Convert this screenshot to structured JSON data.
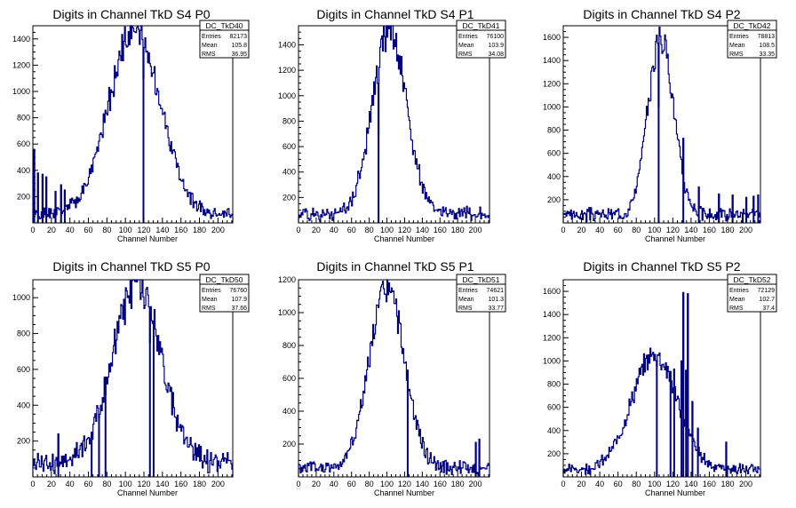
{
  "colors": {
    "line": "#000080",
    "axis": "#000000",
    "background": "#ffffff"
  },
  "chart_data": [
    {
      "type": "histogram",
      "title": "Digits in Channel TkD S4 P0",
      "xlabel": "Channel Number",
      "xlim": [
        0,
        216
      ],
      "ylim": [
        0,
        1500
      ],
      "xticks": [
        0,
        20,
        40,
        60,
        80,
        100,
        120,
        140,
        160,
        180,
        200
      ],
      "yticks": [
        200,
        400,
        600,
        800,
        1000,
        1200,
        1400
      ],
      "stats": {
        "name": "DC_TkD40",
        "entries": "82173",
        "mean": "105.8",
        "rms": "36.95"
      },
      "curve": {
        "mean": 110,
        "sigma": 28,
        "peak": 1400,
        "base": 70,
        "seed": 1
      },
      "extras": [
        [
          0,
          410
        ],
        [
          1,
          560
        ],
        [
          5,
          380
        ],
        [
          10,
          370
        ],
        [
          14,
          350
        ],
        [
          24,
          240
        ],
        [
          30,
          290
        ],
        [
          34,
          250
        ],
        [
          119,
          1100
        ]
      ]
    },
    {
      "type": "histogram",
      "title": "Digits in Channel TkD S4 P1",
      "xlabel": "Channel Number",
      "xlim": [
        0,
        216
      ],
      "ylim": [
        0,
        1550
      ],
      "xticks": [
        0,
        20,
        40,
        60,
        80,
        100,
        120,
        140,
        160,
        180,
        200
      ],
      "yticks": [
        200,
        400,
        600,
        800,
        1000,
        1200,
        1400
      ],
      "stats": {
        "name": "DC_TkD41",
        "entries": "76100",
        "mean": "103.9",
        "rms": "34.08"
      },
      "curve": {
        "mean": 103,
        "sigma": 19,
        "peak": 1450,
        "base": 80,
        "seed": 2
      },
      "extras": [
        [
          90,
          700
        ]
      ]
    },
    {
      "type": "histogram",
      "title": "Digits in Channel TkD S4 P2",
      "xlabel": "Channel Number",
      "xlim": [
        0,
        216
      ],
      "ylim": [
        0,
        1700
      ],
      "xticks": [
        0,
        20,
        40,
        60,
        80,
        100,
        120,
        140,
        160,
        180,
        200
      ],
      "yticks": [
        200,
        400,
        600,
        800,
        1000,
        1200,
        1400,
        1600
      ],
      "stats": {
        "name": "DC_TkD42",
        "entries": "78813",
        "mean": "108.5",
        "rms": "33.35"
      },
      "curve": {
        "mean": 107,
        "sigma": 14,
        "peak": 1540,
        "base": 80,
        "seed": 3
      },
      "extras": [
        [
          104,
          1000
        ],
        [
          131,
          730
        ],
        [
          148,
          310
        ],
        [
          170,
          250
        ],
        [
          185,
          240
        ],
        [
          200,
          220
        ],
        [
          208,
          230
        ],
        [
          213,
          240
        ]
      ]
    },
    {
      "type": "histogram",
      "title": "Digits in Channel TkD S5 P0",
      "xlabel": "Channel Number",
      "xlim": [
        0,
        216
      ],
      "ylim": [
        0,
        1100
      ],
      "xticks": [
        0,
        20,
        40,
        60,
        80,
        100,
        120,
        140,
        160,
        180,
        200
      ],
      "yticks": [
        200,
        400,
        600,
        800,
        1000
      ],
      "stats": {
        "name": "DC_TkD50",
        "entries": "76760",
        "mean": "107.9",
        "rms": "37.66"
      },
      "curve": {
        "mean": 112,
        "sigma": 26,
        "peak": 990,
        "base": 90,
        "seed": 4
      },
      "extras": [
        [
          27,
          240
        ],
        [
          63,
          250
        ],
        [
          71,
          330
        ],
        [
          78,
          460
        ],
        [
          126,
          750
        ],
        [
          130,
          870
        ]
      ]
    },
    {
      "type": "histogram",
      "title": "Digits in Channel TkD S5 P1",
      "xlabel": "Channel Number",
      "xlim": [
        0,
        216
      ],
      "ylim": [
        0,
        1200
      ],
      "xticks": [
        0,
        20,
        40,
        60,
        80,
        100,
        120,
        140,
        160,
        180,
        200
      ],
      "yticks": [
        200,
        400,
        600,
        800,
        1000,
        1200
      ],
      "stats": {
        "name": "DC_TkD51",
        "entries": "74621",
        "mean": "101.3",
        "rms": "33.77"
      },
      "curve": {
        "mean": 100,
        "sigma": 20,
        "peak": 1090,
        "base": 60,
        "seed": 5
      },
      "extras": [
        [
          123,
          650
        ],
        [
          200,
          210
        ],
        [
          204,
          230
        ]
      ]
    },
    {
      "type": "histogram",
      "title": "Digits in Channel TkD S5 P2",
      "xlabel": "Channel Number",
      "xlim": [
        0,
        216
      ],
      "ylim": [
        0,
        1700
      ],
      "xticks": [
        0,
        20,
        40,
        60,
        80,
        100,
        120,
        140,
        160,
        180,
        200
      ],
      "yticks": [
        200,
        400,
        600,
        800,
        1000,
        1200,
        1400,
        1600
      ],
      "stats": {
        "name": "DC_TkD52",
        "entries": "72129",
        "mean": "102.7",
        "rms": "37.4"
      },
      "curve": {
        "mean": 100,
        "sigma": 25,
        "peak": 990,
        "base": 70,
        "seed": 6
      },
      "extras": [
        [
          102,
          960
        ],
        [
          117,
          910
        ],
        [
          121,
          930
        ],
        [
          129,
          1000
        ],
        [
          131,
          1590
        ],
        [
          134,
          920
        ],
        [
          136,
          1580
        ],
        [
          141,
          650
        ],
        [
          147,
          420
        ],
        [
          178,
          300
        ]
      ]
    }
  ]
}
